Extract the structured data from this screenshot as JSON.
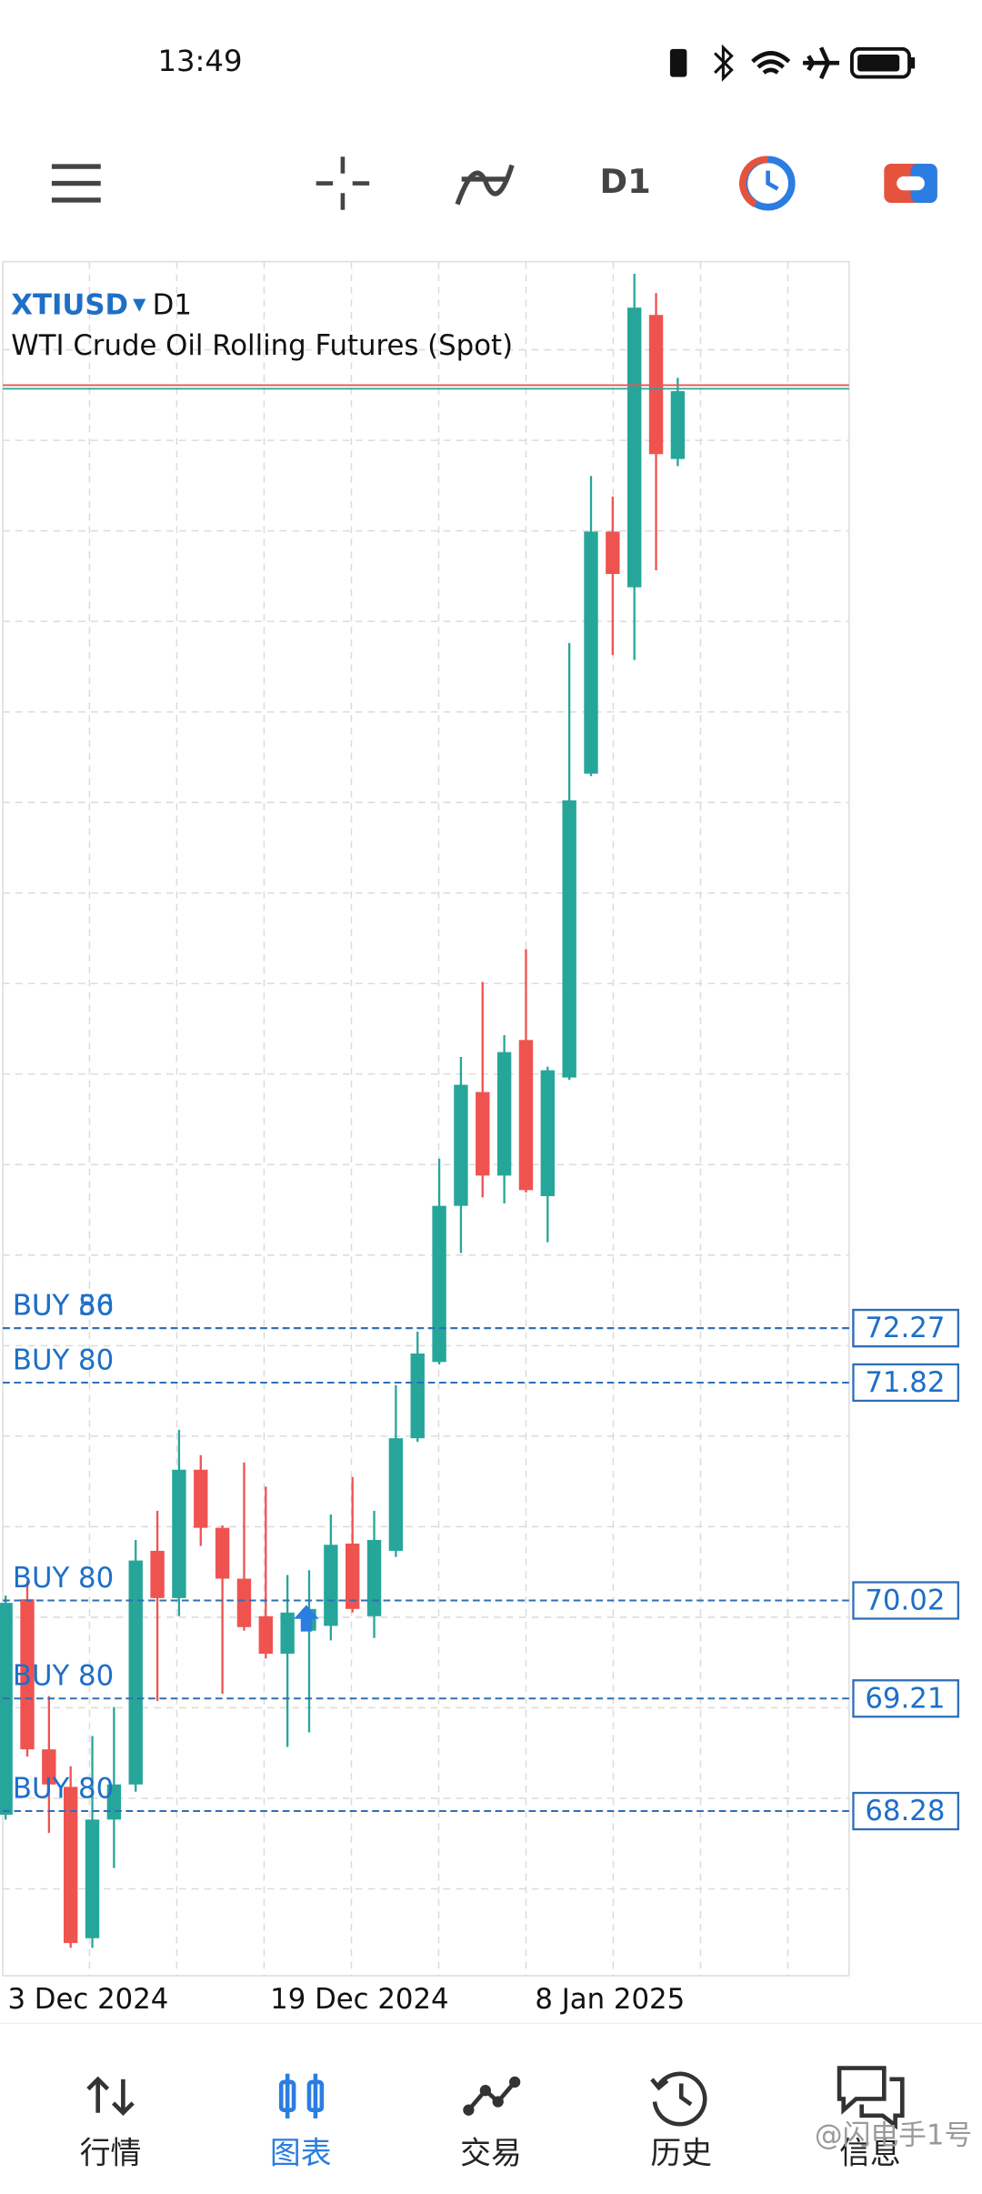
{
  "status_bar": {
    "time": "13:49"
  },
  "toolbar": {
    "timeframe": "D1"
  },
  "chart_data": {
    "type": "candlestick",
    "symbol": "XTIUSD",
    "timeframe": "D1",
    "description": "WTI Crude Oil Rolling Futures (Spot)",
    "x_labels": [
      "3 Dec 2024",
      "19 Dec 2024",
      "8 Jan 2025"
    ],
    "open": [
      68.25,
      70.03,
      68.79,
      68.48,
      67.23,
      68.21,
      68.5,
      70.43,
      70.04,
      71.1,
      70.62,
      70.2,
      69.89,
      69.58,
      69.77,
      69.81,
      70.49,
      69.89,
      70.43,
      71.36,
      71.99,
      73.28,
      74.22,
      73.53,
      74.65,
      73.36,
      74.34,
      76.85,
      78.85,
      78.39,
      80.64,
      79.45
    ],
    "high": [
      70.06,
      70.18,
      69.23,
      68.65,
      68.9,
      69.14,
      70.52,
      70.76,
      71.43,
      71.22,
      70.64,
      71.16,
      70.96,
      70.23,
      70.27,
      70.73,
      71.04,
      70.76,
      71.8,
      72.24,
      73.67,
      74.51,
      75.13,
      74.69,
      75.4,
      74.43,
      77.93,
      79.31,
      79.14,
      80.98,
      80.82,
      80.12
    ],
    "low": [
      68.21,
      68.73,
      68.1,
      67.15,
      67.15,
      67.81,
      68.44,
      69.19,
      69.89,
      70.47,
      69.25,
      69.77,
      69.54,
      68.81,
      68.93,
      69.69,
      69.92,
      69.71,
      70.38,
      71.33,
      71.97,
      72.89,
      73.35,
      73.3,
      73.39,
      72.98,
      74.32,
      76.83,
      77.83,
      77.79,
      78.53,
      79.39
    ],
    "close": [
      70.0,
      68.79,
      68.5,
      67.19,
      68.21,
      68.5,
      70.35,
      70.04,
      71.1,
      70.62,
      70.2,
      69.8,
      69.58,
      69.92,
      69.95,
      70.48,
      69.95,
      70.52,
      71.36,
      72.06,
      73.28,
      74.28,
      73.53,
      74.55,
      73.41,
      74.4,
      76.63,
      78.85,
      78.5,
      80.7,
      79.49,
      80.01
    ],
    "up_color": "#26a69a",
    "down_color": "#ef5350",
    "ylim": [
      66.92,
      81.08
    ],
    "price_lines": [
      {
        "color": "#ef5350",
        "value": 80.06
      },
      {
        "color": "#26a69a",
        "value": 80.03
      }
    ],
    "orders": [
      {
        "label": "BUY 56",
        "price": 72.27
      },
      {
        "label": "BUY 80",
        "price": 72.27
      },
      {
        "label": "BUY 80",
        "price": 71.82
      },
      {
        "label": "BUY 80",
        "price": 70.02
      },
      {
        "label": "BUY 80",
        "price": 69.21
      },
      {
        "label": "BUY 80",
        "price": 68.28
      }
    ]
  },
  "nav": {
    "items": [
      "行情",
      "图表",
      "交易",
      "历史",
      "信息"
    ],
    "active": 1
  },
  "watermark": "@闪电手1号"
}
